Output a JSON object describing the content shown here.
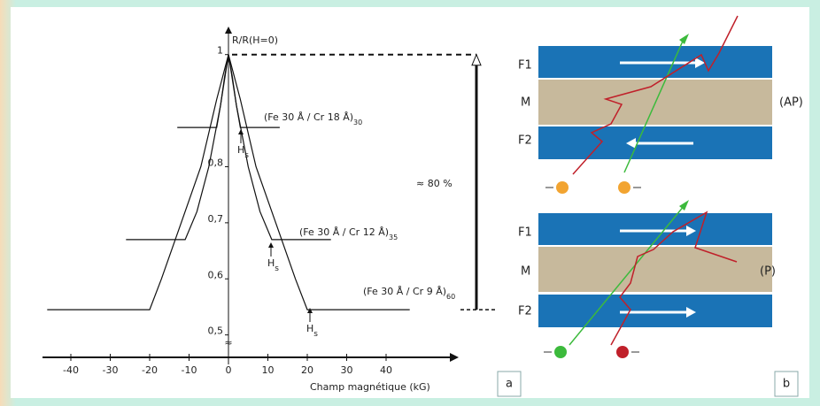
{
  "chart_data": {
    "type": "line",
    "y_label": "R/R(H=0)",
    "x_label": "Champ magnétique (kG)",
    "xlim": [
      -47,
      47
    ],
    "ylim": [
      0.46,
      1.05
    ],
    "xticks": [
      -40,
      -30,
      -20,
      -10,
      0,
      10,
      20,
      30,
      40
    ],
    "yticks": [
      {
        "value": 0.5,
        "label": "0,5"
      },
      {
        "value": 0.6,
        "label": "0,6"
      },
      {
        "value": 0.7,
        "label": "0,7"
      },
      {
        "value": 0.8,
        "label": "0,8"
      },
      1
    ],
    "series": [
      {
        "name": "(Fe 30 Å / Cr 18 Å)",
        "subscript": "30",
        "color": "#111111",
        "x": [
          -13,
          -3,
          -2,
          -1,
          0,
          1,
          2,
          3,
          13
        ],
        "values": [
          0.87,
          0.87,
          0.91,
          0.96,
          1,
          0.96,
          0.91,
          0.87,
          0.87
        ]
      },
      {
        "name": "(Fe 30 Å / Cr 12 Å)",
        "subscript": "35",
        "color": "#111111",
        "x": [
          -26,
          -11,
          -8,
          -5,
          -2,
          0,
          2,
          5,
          8,
          11,
          26
        ],
        "values": [
          0.67,
          0.67,
          0.72,
          0.8,
          0.91,
          1,
          0.91,
          0.8,
          0.72,
          0.67,
          0.67
        ]
      },
      {
        "name": "(Fe 30 Å / Cr 9 Å)",
        "subscript": "60",
        "color": "#111111",
        "x": [
          -46,
          -20,
          -17,
          -12,
          -7,
          -3,
          0,
          3,
          7,
          12,
          17,
          20,
          46
        ],
        "values": [
          0.545,
          0.545,
          0.6,
          0.7,
          0.8,
          0.92,
          1,
          0.92,
          0.8,
          0.7,
          0.6,
          0.545,
          0.545
        ]
      }
    ],
    "annotations": [
      {
        "text": "H",
        "subscript": "s"
      },
      {
        "text": "H",
        "subscript": "s"
      },
      {
        "text": "H",
        "subscript": "s"
      },
      {
        "text": "≈ 80 %"
      },
      {
        "text": "≈"
      }
    ],
    "panel_label": "a"
  },
  "diagram": {
    "top": {
      "layers": [
        "F1",
        "M",
        "F2"
      ],
      "label": "(AP)"
    },
    "bottom": {
      "layers": [
        "F1",
        "M",
        "F2"
      ],
      "label": "(P)"
    },
    "panel_label": "b"
  }
}
